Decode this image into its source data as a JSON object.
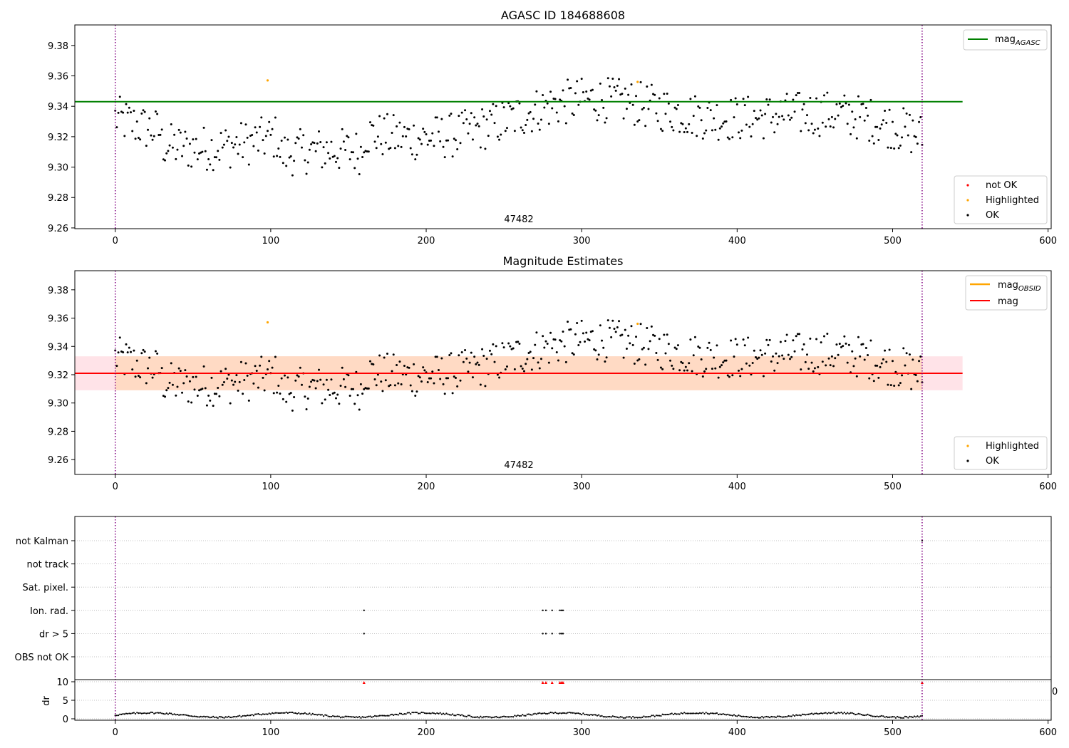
{
  "colors": {
    "black": "#000000",
    "red": "#ff0000",
    "orange": "#ffa500",
    "green": "#008000",
    "purple": "#800080",
    "band_orange": "#ffdac4",
    "band_pink": "#ffe3e8",
    "grid": "#b0b0b0"
  },
  "chart_data": [
    {
      "type": "scatter",
      "title": "AGASC ID 184688608",
      "x_ticks": [
        "0",
        "100",
        "200",
        "300",
        "400",
        "500",
        "600"
      ],
      "y_ticks": [
        "9.26",
        "9.28",
        "9.30",
        "9.32",
        "9.34",
        "9.36",
        "9.38"
      ],
      "xlim": [
        -26,
        602
      ],
      "ylim": [
        9.2595,
        9.3935
      ],
      "obsid_label": "47482",
      "vlines_x": [
        0,
        519
      ],
      "hline": {
        "name": "mag_AGASC",
        "value": 9.343,
        "x_range": [
          -26,
          545
        ]
      },
      "highlighted": [
        {
          "x": 98,
          "y": 9.357
        },
        {
          "x": 336,
          "y": 9.356
        }
      ],
      "legend_lines": [
        {
          "label": "mag",
          "sub": "AGASC",
          "color": "#008000"
        }
      ],
      "legend_points": [
        {
          "label": "not OK",
          "color": "#ff0000"
        },
        {
          "label": "Highlighted",
          "color": "#ffa500"
        },
        {
          "label": "OK",
          "color": "#000000"
        }
      ]
    },
    {
      "type": "scatter",
      "title": "Magnitude Estimates",
      "x_ticks": [
        "0",
        "100",
        "200",
        "300",
        "400",
        "500",
        "600"
      ],
      "y_ticks": [
        "9.26",
        "9.28",
        "9.30",
        "9.32",
        "9.34",
        "9.36",
        "9.38"
      ],
      "xlim": [
        -26,
        602
      ],
      "ylim": [
        9.2495,
        9.3935
      ],
      "obsid_label": "47482",
      "vlines_x": [
        0,
        519
      ],
      "mag_line": {
        "name": "mag",
        "value": 9.321,
        "x_range": [
          -26,
          545
        ]
      },
      "obsid_band": {
        "low": 9.309,
        "high": 9.333,
        "x_range": [
          0,
          519
        ]
      },
      "mag_band": {
        "low": 9.309,
        "high": 9.333,
        "x_range": [
          -26,
          545
        ]
      },
      "highlighted": [
        {
          "x": 98,
          "y": 9.357
        },
        {
          "x": 336,
          "y": 9.356
        }
      ],
      "legend_lines": [
        {
          "label": "mag",
          "sub": "OBSID",
          "color": "#ffa500"
        },
        {
          "label": "mag",
          "sub": "",
          "color": "#ff0000"
        }
      ],
      "legend_points": [
        {
          "label": "Highlighted",
          "color": "#ffa500"
        },
        {
          "label": "OK",
          "color": "#000000"
        }
      ]
    },
    {
      "type": "scatter",
      "title": "",
      "flag_rows": [
        "not Kalman",
        "not track",
        "Sat. pixel.",
        "Ion. rad.",
        "dr > 5",
        "OBS not OK"
      ],
      "flag_points": {
        "not Kalman": [
          519
        ],
        "not track": [],
        "Sat. pixel.": [],
        "Ion. rad.": [
          160,
          275,
          277,
          281,
          286,
          287,
          288
        ],
        "dr > 5": [
          160,
          275,
          277,
          281,
          286,
          287,
          288
        ],
        "OBS not OK": []
      },
      "dr_ylabel": "dr",
      "dr_ticks": [
        "0",
        "5",
        "10"
      ],
      "dr_ylim": [
        0,
        10
      ],
      "dr_outliers_x": [
        160,
        275,
        277,
        281,
        286,
        287,
        288,
        519
      ],
      "extra_tick_label": "0",
      "x_ticks": [
        "0",
        "100",
        "200",
        "300",
        "400",
        "500",
        "600"
      ],
      "xlim": [
        -26,
        602
      ],
      "vlines_x": [
        0,
        519
      ]
    }
  ]
}
